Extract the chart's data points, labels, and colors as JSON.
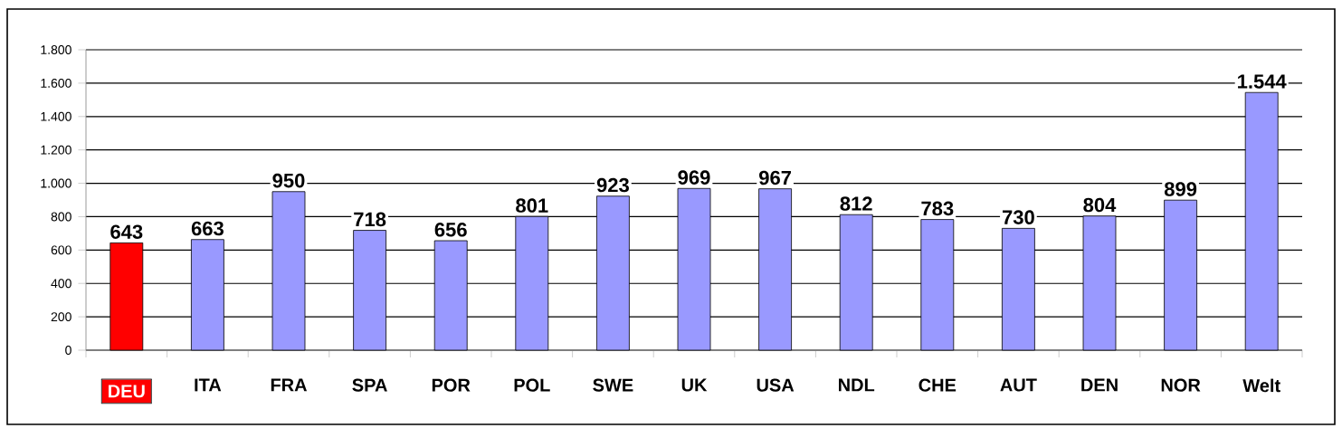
{
  "chart_data": {
    "type": "bar",
    "categories": [
      "DEU",
      "ITA",
      "FRA",
      "SPA",
      "POR",
      "POL",
      "SWE",
      "UK",
      "USA",
      "NDL",
      "CHE",
      "AUT",
      "DEN",
      "NOR",
      "Welt"
    ],
    "values": [
      643,
      663,
      950,
      718,
      656,
      801,
      923,
      969,
      967,
      812,
      783,
      730,
      804,
      899,
      1544
    ],
    "colors": [
      "#ff0000",
      "#9999ff",
      "#9999ff",
      "#9999ff",
      "#9999ff",
      "#9999ff",
      "#9999ff",
      "#9999ff",
      "#9999ff",
      "#9999ff",
      "#9999ff",
      "#9999ff",
      "#9999ff",
      "#9999ff",
      "#9999ff"
    ],
    "value_labels": [
      "643",
      "663",
      "950",
      "718",
      "656",
      "801",
      "923",
      "969",
      "967",
      "812",
      "783",
      "730",
      "804",
      "899",
      "1.544"
    ],
    "ylim": [
      0,
      1800
    ],
    "yticks": [
      0,
      200,
      400,
      600,
      800,
      {
        "value": 1000,
        "label": "1.000"
      },
      {
        "value": 1200,
        "label": "1.200"
      },
      {
        "value": 1400,
        "label": "1.400"
      },
      {
        "value": 1600,
        "label": "1.600"
      },
      {
        "value": 1800,
        "label": "1.800"
      }
    ],
    "grid": "y"
  }
}
